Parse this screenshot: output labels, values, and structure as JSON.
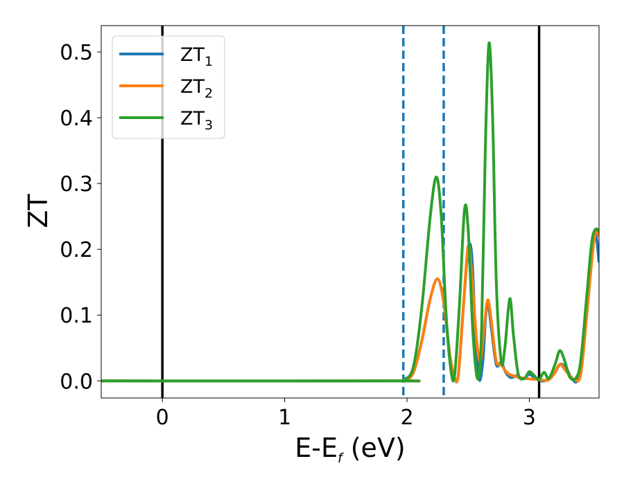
{
  "chart_data": {
    "type": "line",
    "xlabel": {
      "main": "E-E",
      "sub": "f",
      "unit": " (eV)"
    },
    "ylabel": "ZT",
    "xlim": [
      -0.5,
      3.57
    ],
    "ylim": [
      -0.026,
      0.54
    ],
    "xticks": [
      0,
      1,
      2,
      3
    ],
    "xtick_labels": [
      "0",
      "1",
      "2",
      "3"
    ],
    "yticks": [
      0.0,
      0.1,
      0.2,
      0.3,
      0.4,
      0.5
    ],
    "ytick_labels": [
      "0.0",
      "0.1",
      "0.2",
      "0.3",
      "0.4",
      "0.5"
    ],
    "grid": false,
    "legend_position": "top-left",
    "vlines": [
      {
        "x": 0.0,
        "style": "solid",
        "color": "#000000"
      },
      {
        "x": 1.97,
        "style": "dashed",
        "color": "#1f77b4"
      },
      {
        "x": 2.3,
        "style": "dashed",
        "color": "#1f77b4"
      },
      {
        "x": 3.08,
        "style": "solid",
        "color": "#000000"
      }
    ],
    "series": [
      {
        "name": "ZT",
        "sub": "1",
        "color": "#1f77b4",
        "points": [
          [
            -0.5,
            0
          ],
          [
            1.9,
            0
          ],
          [
            1.98,
            0.001
          ],
          [
            2.05,
            0.012
          ],
          [
            2.12,
            0.06
          ],
          [
            2.19,
            0.125
          ],
          [
            2.25,
            0.155
          ],
          [
            2.3,
            0.12
          ],
          [
            2.35,
            0.04
          ],
          [
            2.39,
            0.004
          ],
          [
            2.42,
            0.01
          ],
          [
            2.46,
            0.11
          ],
          [
            2.5,
            0.2
          ],
          [
            2.53,
            0.19
          ],
          [
            2.56,
            0.07
          ],
          [
            2.59,
            0.002
          ],
          [
            2.62,
            0.03
          ],
          [
            2.64,
            0.09
          ],
          [
            2.66,
            0.12
          ],
          [
            2.69,
            0.08
          ],
          [
            2.73,
            0.025
          ],
          [
            2.77,
            0.028
          ],
          [
            2.81,
            0.012
          ],
          [
            2.85,
            0.005
          ],
          [
            2.9,
            0.008
          ],
          [
            2.95,
            0.003
          ],
          [
            3.0,
            0.01
          ],
          [
            3.05,
            0.004
          ],
          [
            3.12,
            0.0
          ],
          [
            3.2,
            0.01
          ],
          [
            3.25,
            0.025
          ],
          [
            3.3,
            0.02
          ],
          [
            3.35,
            0.003
          ],
          [
            3.4,
            0.005
          ],
          [
            3.45,
            0.08
          ],
          [
            3.5,
            0.19
          ],
          [
            3.54,
            0.225
          ],
          [
            3.57,
            0.18
          ]
        ]
      },
      {
        "name": "ZT",
        "sub": "2",
        "color": "#ff7f0e",
        "points": [
          [
            -0.5,
            0
          ],
          [
            1.9,
            0
          ],
          [
            1.98,
            0.001
          ],
          [
            2.05,
            0.012
          ],
          [
            2.12,
            0.06
          ],
          [
            2.19,
            0.125
          ],
          [
            2.25,
            0.155
          ],
          [
            2.3,
            0.12
          ],
          [
            2.35,
            0.04
          ],
          [
            2.39,
            0.004
          ],
          [
            2.42,
            0.01
          ],
          [
            2.46,
            0.11
          ],
          [
            2.5,
            0.205
          ],
          [
            2.53,
            0.16
          ],
          [
            2.57,
            0.06
          ],
          [
            2.6,
            0.03
          ],
          [
            2.63,
            0.08
          ],
          [
            2.66,
            0.123
          ],
          [
            2.69,
            0.09
          ],
          [
            2.73,
            0.03
          ],
          [
            2.77,
            0.025
          ],
          [
            2.82,
            0.012
          ],
          [
            2.9,
            0.006
          ],
          [
            3.0,
            0.003
          ],
          [
            3.08,
            0.002
          ],
          [
            3.15,
            0.001
          ],
          [
            3.2,
            0.01
          ],
          [
            3.25,
            0.025
          ],
          [
            3.3,
            0.015
          ],
          [
            3.37,
            0.002
          ],
          [
            3.42,
            0.01
          ],
          [
            3.47,
            0.1
          ],
          [
            3.52,
            0.2
          ],
          [
            3.55,
            0.228
          ],
          [
            3.57,
            0.22
          ]
        ]
      },
      {
        "name": "ZT",
        "sub": "3",
        "color": "#2ca02c",
        "points": [
          [
            -0.5,
            0
          ],
          [
            1.9,
            0
          ],
          [
            1.97,
            0.002
          ],
          [
            2.05,
            0.02
          ],
          [
            2.12,
            0.11
          ],
          [
            2.19,
            0.25
          ],
          [
            2.24,
            0.31
          ],
          [
            2.28,
            0.25
          ],
          [
            2.32,
            0.1
          ],
          [
            2.36,
            0.015
          ],
          [
            2.39,
            0.01
          ],
          [
            2.43,
            0.12
          ],
          [
            2.47,
            0.26
          ],
          [
            2.5,
            0.23
          ],
          [
            2.54,
            0.07
          ],
          [
            2.58,
            0.003
          ],
          [
            2.61,
            0.08
          ],
          [
            2.64,
            0.35
          ],
          [
            2.67,
            0.513
          ],
          [
            2.7,
            0.4
          ],
          [
            2.73,
            0.15
          ],
          [
            2.77,
            0.03
          ],
          [
            2.8,
            0.05
          ],
          [
            2.84,
            0.125
          ],
          [
            2.87,
            0.07
          ],
          [
            2.91,
            0.01
          ],
          [
            2.96,
            0.004
          ],
          [
            3.0,
            0.014
          ],
          [
            3.04,
            0.008
          ],
          [
            3.08,
            0.002
          ],
          [
            3.12,
            0.013
          ],
          [
            3.16,
            0.004
          ],
          [
            3.21,
            0.025
          ],
          [
            3.25,
            0.046
          ],
          [
            3.29,
            0.03
          ],
          [
            3.33,
            0.006
          ],
          [
            3.38,
            0.004
          ],
          [
            3.42,
            0.03
          ],
          [
            3.47,
            0.13
          ],
          [
            3.51,
            0.21
          ],
          [
            3.54,
            0.23
          ],
          [
            3.57,
            0.228
          ]
        ]
      }
    ]
  }
}
